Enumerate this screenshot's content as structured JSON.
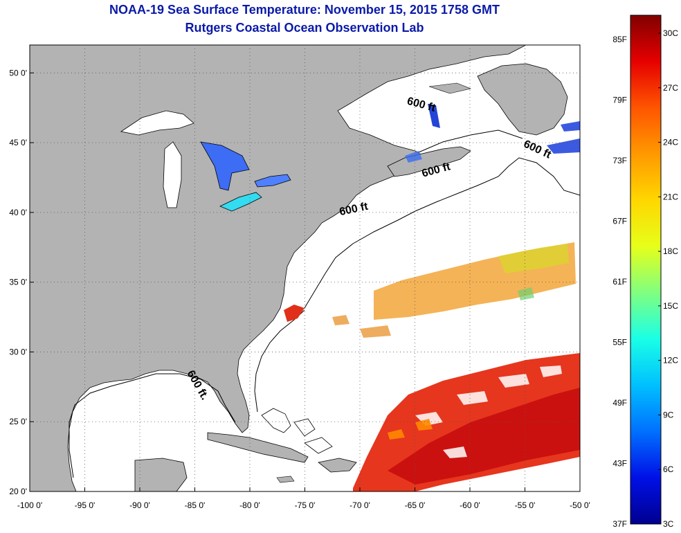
{
  "title": "NOAA-19 Sea Surface Temperature:  November 15, 2015 1758 GMT",
  "subtitle": "Rutgers Coastal Ocean Observation Lab",
  "map": {
    "lon_range": [
      -100,
      -50
    ],
    "lat_range": [
      20,
      52
    ],
    "lon_ticks": [
      {
        "value": -100,
        "label": "-100 0'"
      },
      {
        "value": -95,
        "label": "-95 0'"
      },
      {
        "value": -90,
        "label": "-90 0'"
      },
      {
        "value": -85,
        "label": "-85 0'"
      },
      {
        "value": -80,
        "label": "-80 0'"
      },
      {
        "value": -75,
        "label": "-75 0'"
      },
      {
        "value": -70,
        "label": "-70 0'"
      },
      {
        "value": -65,
        "label": "-65 0'"
      },
      {
        "value": -60,
        "label": "-60 0'"
      },
      {
        "value": -55,
        "label": "-55 0'"
      },
      {
        "value": -50,
        "label": "-50 0'"
      }
    ],
    "lat_ticks": [
      {
        "value": 20,
        "label": "20 0'"
      },
      {
        "value": 25,
        "label": "25 0'"
      },
      {
        "value": 30,
        "label": "30 0'"
      },
      {
        "value": 35,
        "label": "35 0'"
      },
      {
        "value": 40,
        "label": "40 0'"
      },
      {
        "value": 45,
        "label": "45 0'"
      },
      {
        "value": 50,
        "label": "50 0'"
      }
    ],
    "contour_labels": [
      {
        "text": "600 ft",
        "lon": -64.5,
        "lat": 47.5,
        "rot": 15
      },
      {
        "text": "600 ft",
        "lon": -54,
        "lat": 44.3,
        "rot": 25
      },
      {
        "text": "600 ft",
        "lon": -63,
        "lat": 42.8,
        "rot": -15
      },
      {
        "text": "600 ft",
        "lon": -70.5,
        "lat": 40,
        "rot": -12
      },
      {
        "text": "600 ft.",
        "lon": -85,
        "lat": 27.5,
        "rot": 60
      }
    ],
    "land_color": "#b3b3b3",
    "ocean_color": "#ffffff"
  },
  "colorbar": {
    "f_labels": [
      "85F",
      "79F",
      "73F",
      "67F",
      "61F",
      "55F",
      "49F",
      "43F",
      "37F"
    ],
    "c_labels": [
      "30C",
      "27C",
      "24C",
      "21C",
      "18C",
      "15C",
      "12C",
      "9C",
      "6C",
      "3C"
    ],
    "colors_top_to_bottom": [
      "#800000",
      "#e60000",
      "#ff5500",
      "#ff9900",
      "#ffd700",
      "#e6ff1a",
      "#80ff80",
      "#1affe6",
      "#00c0ff",
      "#0070ff",
      "#0010e6",
      "#00008f"
    ]
  }
}
